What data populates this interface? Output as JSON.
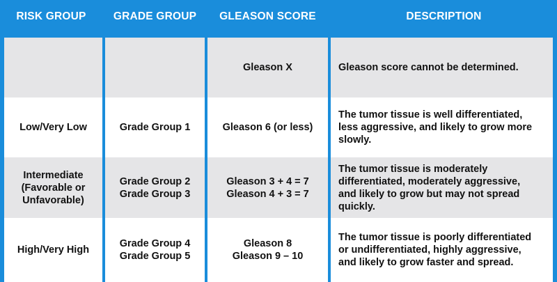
{
  "headers": {
    "risk_group": "RISK GROUP",
    "grade_group": "GRADE GROUP",
    "gleason_score": "GLEASON SCORE",
    "description": "DESCRIPTION"
  },
  "rows": [
    {
      "risk_group": [],
      "grade_group": [],
      "gleason_score": [
        "Gleason X"
      ],
      "description": [
        "Gleason score cannot be determined."
      ]
    },
    {
      "risk_group": [
        "Low/Very Low"
      ],
      "grade_group": [
        "Grade Group 1"
      ],
      "gleason_score": [
        "Gleason 6 (or less)"
      ],
      "description": [
        "The tumor tissue is well differentiated,",
        "less aggressive, and likely to grow more",
        "slowly."
      ]
    },
    {
      "risk_group": [
        "Intermediate",
        "(Favorable or",
        "Unfavorable)"
      ],
      "grade_group": [
        "Grade Group 2",
        "Grade Group 3"
      ],
      "gleason_score": [
        "Gleason 3 + 4 = 7",
        "Gleason 4 + 3 = 7"
      ],
      "description": [
        "The tumor tissue is moderately",
        "differentiated, moderately aggressive,",
        "and likely to grow but may not spread",
        "quickly."
      ]
    },
    {
      "risk_group": [
        "High/Very High"
      ],
      "grade_group": [
        "Grade Group 4",
        "Grade Group 5"
      ],
      "gleason_score": [
        "Gleason 8",
        "Gleason 9 – 10"
      ],
      "description": [
        "The tumor tissue is poorly differentiated",
        "or undifferentiated, highly aggressive,",
        "and likely to grow faster and spread."
      ]
    }
  ],
  "colors": {
    "header_bg": "#1a8ddb",
    "header_text": "#ffffff",
    "row_gray": "#e5e5e7",
    "row_white": "#ffffff",
    "body_text": "#111111"
  }
}
